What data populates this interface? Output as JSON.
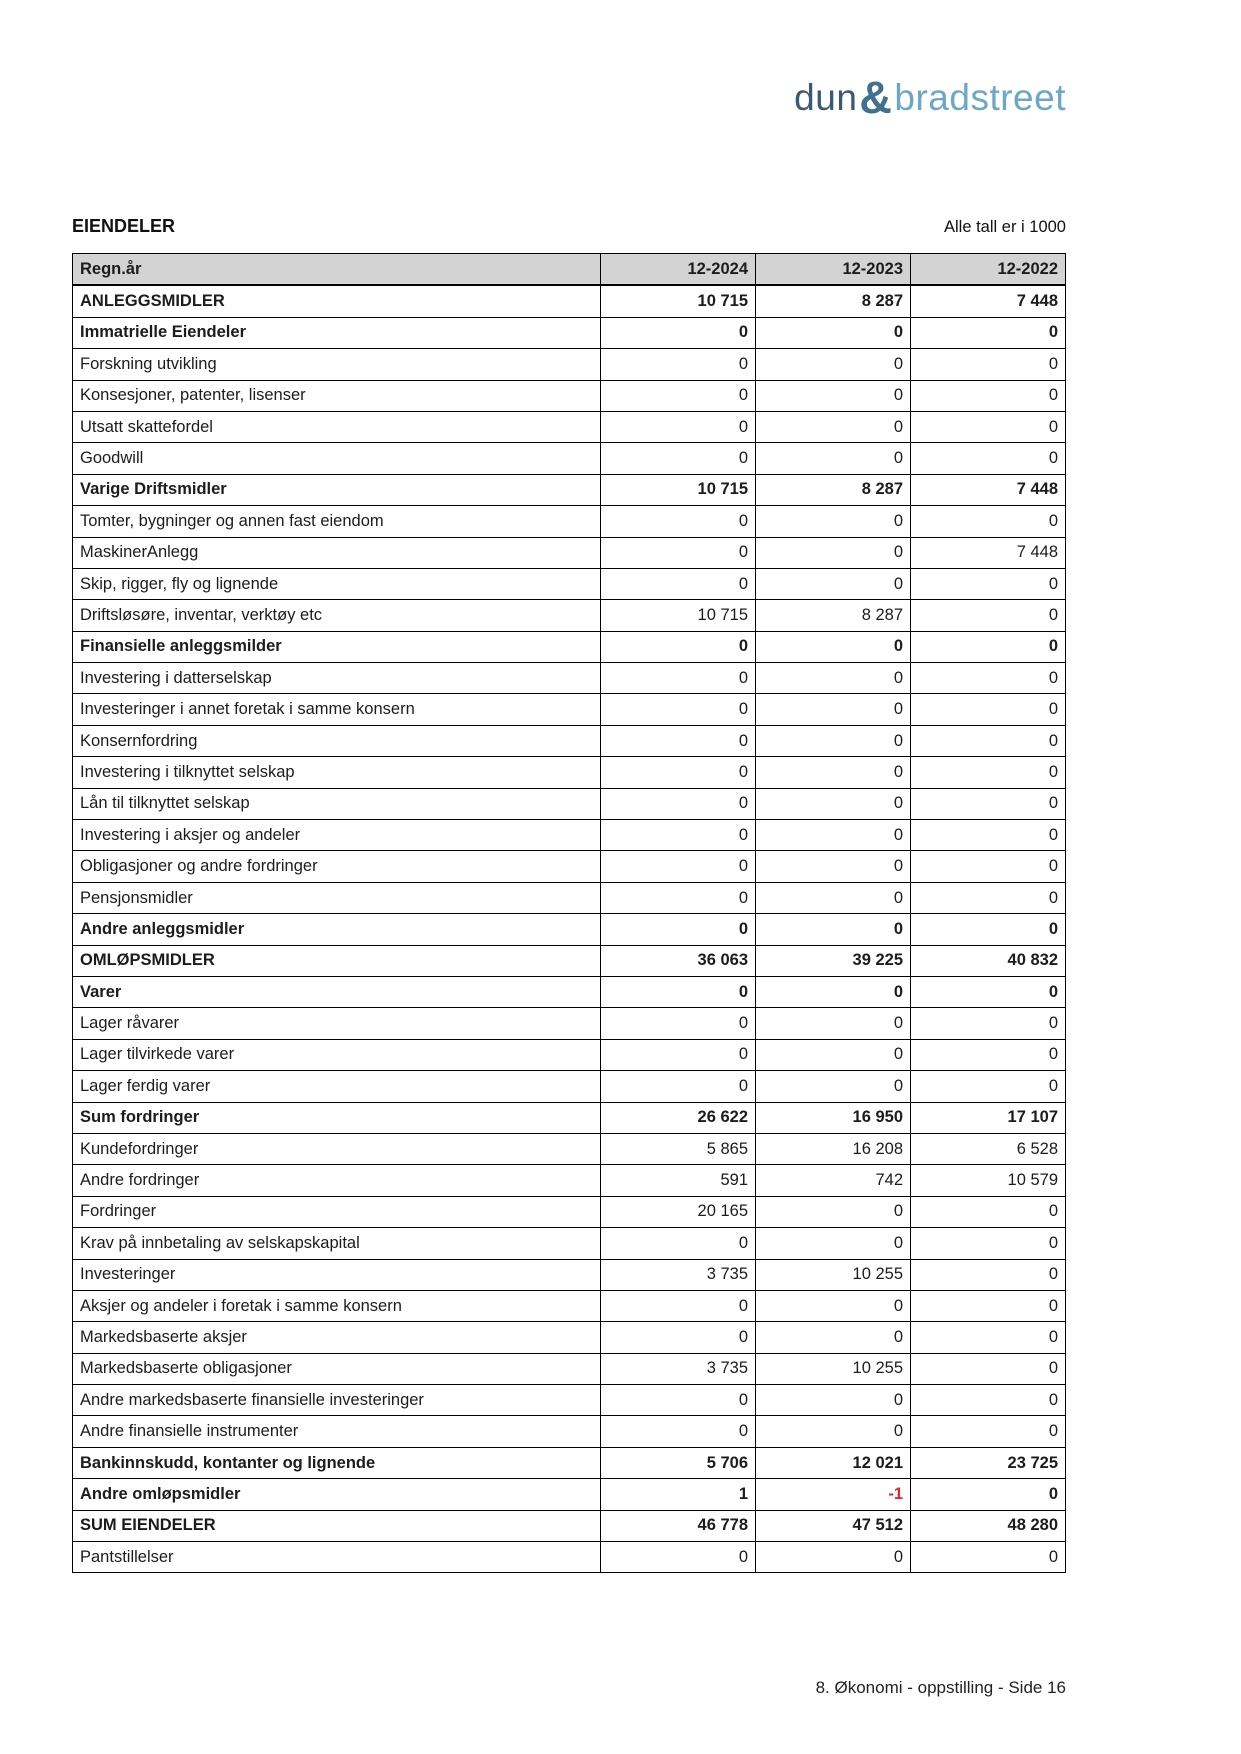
{
  "logo": {
    "part1": "dun",
    "amp": "&",
    "part2": "bradstreet"
  },
  "header": {
    "title": "EIENDELER",
    "note": "Alle tall er i 1000"
  },
  "colors": {
    "logo_dark": "#3a5a74",
    "logo_light": "#6ca7c6",
    "header_row_bg": "#d3d3d3",
    "negative_value": "#e02430"
  },
  "table": {
    "columns": [
      "Regn.år",
      "12-2024",
      "12-2023",
      "12-2022"
    ],
    "rows": [
      {
        "label": "ANLEGGSMIDLER",
        "bold": true,
        "values": [
          "10 715",
          "8 287",
          "7 448"
        ]
      },
      {
        "label": "Immatrielle Eiendeler",
        "bold": true,
        "values": [
          "0",
          "0",
          "0"
        ]
      },
      {
        "label": "Forskning utvikling",
        "bold": false,
        "values": [
          "0",
          "0",
          "0"
        ]
      },
      {
        "label": "Konsesjoner, patenter, lisenser",
        "bold": false,
        "values": [
          "0",
          "0",
          "0"
        ]
      },
      {
        "label": "Utsatt skattefordel",
        "bold": false,
        "values": [
          "0",
          "0",
          "0"
        ]
      },
      {
        "label": "Goodwill",
        "bold": false,
        "values": [
          "0",
          "0",
          "0"
        ]
      },
      {
        "label": "Varige Driftsmidler",
        "bold": true,
        "values": [
          "10 715",
          "8 287",
          "7 448"
        ]
      },
      {
        "label": "Tomter, bygninger og annen fast eiendom",
        "bold": false,
        "values": [
          "0",
          "0",
          "0"
        ]
      },
      {
        "label": "MaskinerAnlegg",
        "bold": false,
        "values": [
          "0",
          "0",
          "7 448"
        ]
      },
      {
        "label": "Skip, rigger, fly og lignende",
        "bold": false,
        "values": [
          "0",
          "0",
          "0"
        ]
      },
      {
        "label": "Driftsløsøre, inventar, verktøy etc",
        "bold": false,
        "values": [
          "10 715",
          "8 287",
          "0"
        ]
      },
      {
        "label": "Finansielle anleggsmilder",
        "bold": true,
        "values": [
          "0",
          "0",
          "0"
        ]
      },
      {
        "label": "Investering i datterselskap",
        "bold": false,
        "values": [
          "0",
          "0",
          "0"
        ]
      },
      {
        "label": "Investeringer i annet foretak i samme konsern",
        "bold": false,
        "values": [
          "0",
          "0",
          "0"
        ]
      },
      {
        "label": "Konsernfordring",
        "bold": false,
        "values": [
          "0",
          "0",
          "0"
        ]
      },
      {
        "label": "Investering i tilknyttet selskap",
        "bold": false,
        "values": [
          "0",
          "0",
          "0"
        ]
      },
      {
        "label": "Lån til tilknyttet selskap",
        "bold": false,
        "values": [
          "0",
          "0",
          "0"
        ]
      },
      {
        "label": "Investering i aksjer og andeler",
        "bold": false,
        "values": [
          "0",
          "0",
          "0"
        ]
      },
      {
        "label": "Obligasjoner og andre fordringer",
        "bold": false,
        "values": [
          "0",
          "0",
          "0"
        ]
      },
      {
        "label": "Pensjonsmidler",
        "bold": false,
        "values": [
          "0",
          "0",
          "0"
        ]
      },
      {
        "label": "Andre anleggsmidler",
        "bold": true,
        "values": [
          "0",
          "0",
          "0"
        ]
      },
      {
        "label": "OMLØPSMIDLER",
        "bold": true,
        "values": [
          "36 063",
          "39 225",
          "40 832"
        ]
      },
      {
        "label": "Varer",
        "bold": true,
        "values": [
          "0",
          "0",
          "0"
        ]
      },
      {
        "label": "Lager råvarer",
        "bold": false,
        "values": [
          "0",
          "0",
          "0"
        ]
      },
      {
        "label": "Lager tilvirkede varer",
        "bold": false,
        "values": [
          "0",
          "0",
          "0"
        ]
      },
      {
        "label": "Lager ferdig varer",
        "bold": false,
        "values": [
          "0",
          "0",
          "0"
        ]
      },
      {
        "label": "Sum fordringer",
        "bold": true,
        "values": [
          "26 622",
          "16 950",
          "17 107"
        ]
      },
      {
        "label": "Kundefordringer",
        "bold": false,
        "values": [
          "5 865",
          "16 208",
          "6 528"
        ]
      },
      {
        "label": "Andre fordringer",
        "bold": false,
        "values": [
          "591",
          "742",
          "10 579"
        ]
      },
      {
        "label": "Fordringer",
        "bold": false,
        "values": [
          "20 165",
          "0",
          "0"
        ]
      },
      {
        "label": "Krav på innbetaling av selskapskapital",
        "bold": false,
        "values": [
          "0",
          "0",
          "0"
        ]
      },
      {
        "label": "Investeringer",
        "bold": false,
        "values": [
          "3 735",
          "10 255",
          "0"
        ]
      },
      {
        "label": "Aksjer og andeler i foretak i samme konsern",
        "bold": false,
        "values": [
          "0",
          "0",
          "0"
        ]
      },
      {
        "label": "Markedsbaserte aksjer",
        "bold": false,
        "values": [
          "0",
          "0",
          "0"
        ]
      },
      {
        "label": "Markedsbaserte obligasjoner",
        "bold": false,
        "values": [
          "3 735",
          "10 255",
          "0"
        ]
      },
      {
        "label": "Andre markedsbaserte finansielle investeringer",
        "bold": false,
        "values": [
          "0",
          "0",
          "0"
        ]
      },
      {
        "label": "Andre finansielle instrumenter",
        "bold": false,
        "values": [
          "0",
          "0",
          "0"
        ]
      },
      {
        "label": "Bankinnskudd, kontanter og lignende",
        "bold": true,
        "values": [
          "5 706",
          "12 021",
          "23 725"
        ]
      },
      {
        "label": "Andre omløpsmidler",
        "bold": true,
        "values": [
          "1",
          "-1",
          "0"
        ]
      },
      {
        "label": "SUM EIENDELER",
        "bold": true,
        "values": [
          "46 778",
          "47 512",
          "48 280"
        ]
      },
      {
        "label": "Pantstillelser",
        "bold": false,
        "values": [
          "0",
          "0",
          "0"
        ]
      }
    ]
  },
  "footer": {
    "text": "8. Økonomi - oppstilling - Side 16"
  }
}
